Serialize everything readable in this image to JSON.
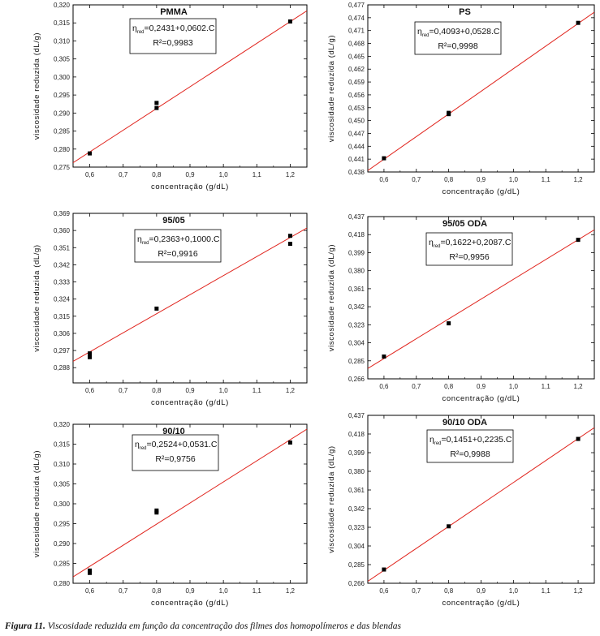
{
  "caption": {
    "label": "Figura 11.",
    "text": "Viscosidade reduzida em função da concentração dos filmes dos homopolímeros e das blendas"
  },
  "colors": {
    "fit_line": "#e0231c",
    "points": "#000000",
    "axes": "#000000"
  },
  "chart_data": [
    {
      "type": "scatter",
      "title": "PMMA",
      "xlabel": "concentração (g/dL)",
      "ylabel": "viscosidade reduzida (dL/g)",
      "xlim": [
        0.55,
        1.25
      ],
      "ylim": [
        0.275,
        0.32
      ],
      "xticks": [
        "0,6",
        "0,7",
        "0,8",
        "0,9",
        "1,0",
        "1,1",
        "1,2"
      ],
      "yticks": [
        "0,275",
        "0,280",
        "0,285",
        "0,290",
        "0,295",
        "0,300",
        "0,305",
        "0,310",
        "0,315",
        "0,320"
      ],
      "points": [
        [
          0.6,
          0.2788
        ],
        [
          0.8,
          0.2914
        ],
        [
          0.8,
          0.2928
        ],
        [
          1.2,
          0.3154
        ]
      ],
      "fit": {
        "intercept": 0.2431,
        "slope": 0.0602
      },
      "equation": {
        "eta": "η",
        "sub": "red",
        "rest": "=0,2431+0,0602.C",
        "r2": "R²=0,9983"
      },
      "legend": "top-center"
    },
    {
      "type": "scatter",
      "title": "PS",
      "xlabel": "concentração (g/dL)",
      "ylabel": "viscosidade reduzida (dL/g)",
      "xlim": [
        0.55,
        1.25
      ],
      "ylim": [
        0.438,
        0.477
      ],
      "xticks": [
        "0,6",
        "0,7",
        "0,8",
        "0,9",
        "1,0",
        "1,1",
        "1,2"
      ],
      "yticks": [
        "0,438",
        "0,441",
        "0,444",
        "0,447",
        "0,450",
        "0,453",
        "0,456",
        "0,459",
        "0,462",
        "0,465",
        "0,468",
        "0,471",
        "0,474",
        "0,477"
      ],
      "points": [
        [
          0.6,
          0.4412
        ],
        [
          0.8,
          0.4515
        ],
        [
          0.8,
          0.4518
        ],
        [
          1.2,
          0.4728
        ]
      ],
      "fit": {
        "intercept": 0.4093,
        "slope": 0.0528
      },
      "equation": {
        "eta": "η",
        "sub": "red",
        "rest": "=0,4093+0,0528.C",
        "r2": "R²=0,9998"
      },
      "legend": "top-center"
    },
    {
      "type": "scatter",
      "title": "95/05",
      "xlabel": "concentração (g/dL)",
      "ylabel": "viscosidade reduzida (dL/g)",
      "xlim": [
        0.55,
        1.25
      ],
      "ylim": [
        0.28,
        0.369
      ],
      "xticks": [
        "0,6",
        "0,7",
        "0,8",
        "0,9",
        "1,0",
        "1,1",
        "1,2"
      ],
      "yticks": [
        "0,288",
        "0,297",
        "0,306",
        "0,315",
        "0,324",
        "0,333",
        "0,342",
        "0,351",
        "0,360",
        "0,369"
      ],
      "points": [
        [
          0.6,
          0.2935
        ],
        [
          0.6,
          0.2955
        ],
        [
          0.8,
          0.319
        ],
        [
          1.2,
          0.353
        ],
        [
          1.2,
          0.3572
        ]
      ],
      "fit": {
        "intercept": 0.2363,
        "slope": 0.1
      },
      "equation": {
        "eta": "η",
        "sub": "red",
        "rest": "=0,2363+0,1000.C",
        "r2": "R²=0,9916"
      },
      "legend": "top-center"
    },
    {
      "type": "scatter",
      "title": "95/05 ODA",
      "xlabel": "concentração (g/dL)",
      "ylabel": "viscosidade reduzida (dL/g)",
      "xlim": [
        0.55,
        1.25
      ],
      "ylim": [
        0.266,
        0.437
      ],
      "xticks": [
        "0,6",
        "0,7",
        "0,8",
        "0,9",
        "1,0",
        "1,1",
        "1,2"
      ],
      "yticks": [
        "0,266",
        "0,285",
        "0,304",
        "0,323",
        "0,342",
        "0,361",
        "0,380",
        "0,399",
        "0,418",
        "0,437"
      ],
      "points": [
        [
          0.6,
          0.2895
        ],
        [
          0.8,
          0.3245
        ],
        [
          1.2,
          0.4125
        ]
      ],
      "fit": {
        "intercept": 0.1622,
        "slope": 0.2087
      },
      "equation": {
        "eta": "η",
        "sub": "red",
        "rest": "=0,1622+0,2087.C",
        "r2": "R²=0,9956"
      },
      "legend": "top-center"
    },
    {
      "type": "scatter",
      "title": "90/10",
      "xlabel": "concentração (g/dL)",
      "ylabel": "viscosidade reduzida (dL/g)",
      "xlim": [
        0.55,
        1.25
      ],
      "ylim": [
        0.28,
        0.32
      ],
      "xticks": [
        "0,6",
        "0,7",
        "0,8",
        "0,9",
        "1,0",
        "1,1",
        "1,2"
      ],
      "yticks": [
        "0,280",
        "0,285",
        "0,290",
        "0,295",
        "0,300",
        "0,305",
        "0,310",
        "0,315",
        "0,320"
      ],
      "points": [
        [
          0.6,
          0.2826
        ],
        [
          0.6,
          0.2832
        ],
        [
          0.8,
          0.2978
        ],
        [
          0.8,
          0.2983
        ],
        [
          1.2,
          0.3154
        ]
      ],
      "fit": {
        "intercept": 0.2524,
        "slope": 0.0531
      },
      "equation": {
        "eta": "η",
        "sub": "red",
        "rest": "=0,2524+0,0531.C",
        "r2": "R²=0,9756"
      },
      "legend": "top-center"
    },
    {
      "type": "scatter",
      "title": "90/10 ODA",
      "xlabel": "concentração (g/dL)",
      "ylabel": "viscosidade reduzida (dL/g)",
      "xlim": [
        0.55,
        1.25
      ],
      "ylim": [
        0.266,
        0.437
      ],
      "xticks": [
        "0,6",
        "0,7",
        "0,8",
        "0,9",
        "1,0",
        "1,1",
        "1,2"
      ],
      "yticks": [
        "0,266",
        "0,285",
        "0,304",
        "0,323",
        "0,342",
        "0,361",
        "0,380",
        "0,399",
        "0,418",
        "0,437"
      ],
      "points": [
        [
          0.6,
          0.28
        ],
        [
          0.8,
          0.324
        ],
        [
          1.2,
          0.413
        ]
      ],
      "fit": {
        "intercept": 0.1451,
        "slope": 0.2235
      },
      "equation": {
        "eta": "η",
        "sub": "red",
        "rest": "=0,1451+0,2235.C",
        "r2": "R²=0,9988"
      },
      "legend": "top-center"
    }
  ]
}
